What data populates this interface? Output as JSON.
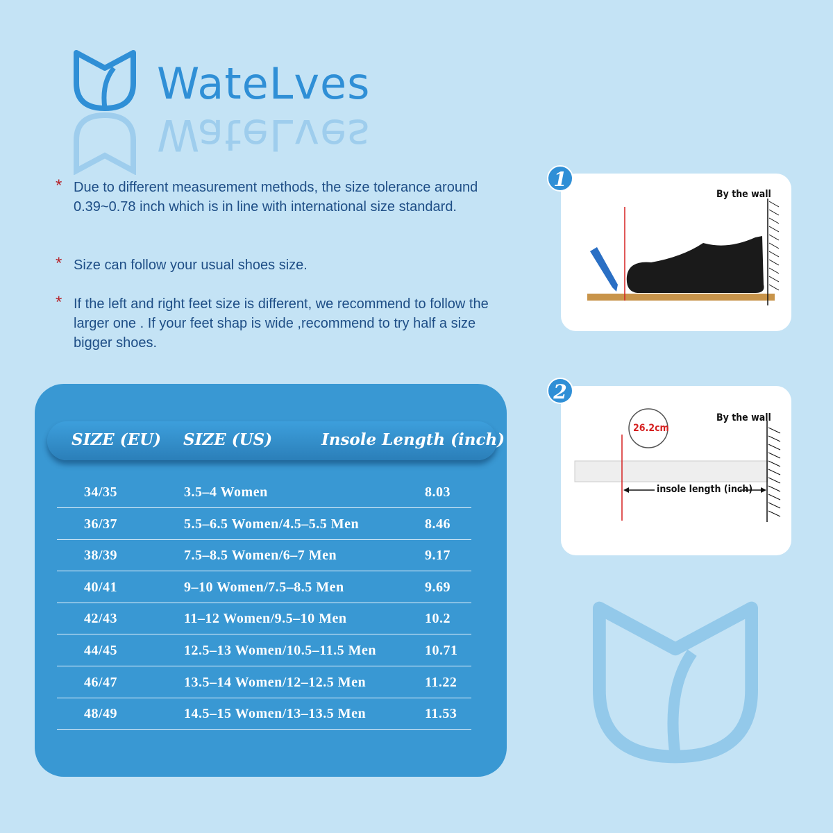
{
  "brand": {
    "name": "WateLves",
    "color": "#2f8fd6"
  },
  "notes": [
    "Due to different measurement methods,  the size tolerance around  0.39~0.78 inch which is in line with international size standard.",
    "Size can follow your usual shoes size.",
    "If the left and right feet size is different,  we recommend to follow the larger one . If your feet shap is wide ,recommend to try half a size bigger shoes."
  ],
  "table": {
    "headers": [
      "SIZE (EU)",
      "SIZE (US)",
      "Insole Length (inch)"
    ],
    "rows": [
      [
        "34/35",
        "3.5–4 Women",
        "8.03"
      ],
      [
        "36/37",
        "5.5–6.5 Women/4.5–5.5 Men",
        "8.46"
      ],
      [
        "38/39",
        "7.5–8.5 Women/6–7 Men",
        "9.17"
      ],
      [
        "40/41",
        "9–10 Women/7.5–8.5 Men",
        "9.69"
      ],
      [
        "42/43",
        "11–12 Women/9.5–10 Men",
        "10.2"
      ],
      [
        "44/45",
        "12.5–13 Women/10.5–11.5 Men",
        "10.71"
      ],
      [
        "46/47",
        "13.5–14 Women/12–12.5 Men",
        "11.22"
      ],
      [
        "48/49",
        "14.5–15 Women/13–13.5 Men",
        "11.53"
      ]
    ]
  },
  "steps": [
    {
      "number": "1",
      "wall_label": "By the wall"
    },
    {
      "number": "2",
      "wall_label": "By the wall",
      "measurement": "26.2cm",
      "arrow_label": "insole length (inch)"
    }
  ],
  "colors": {
    "background": "#c4e3f5",
    "panel": "#3998d3",
    "text": "#1e4e86",
    "bullet": "#b5242b"
  }
}
